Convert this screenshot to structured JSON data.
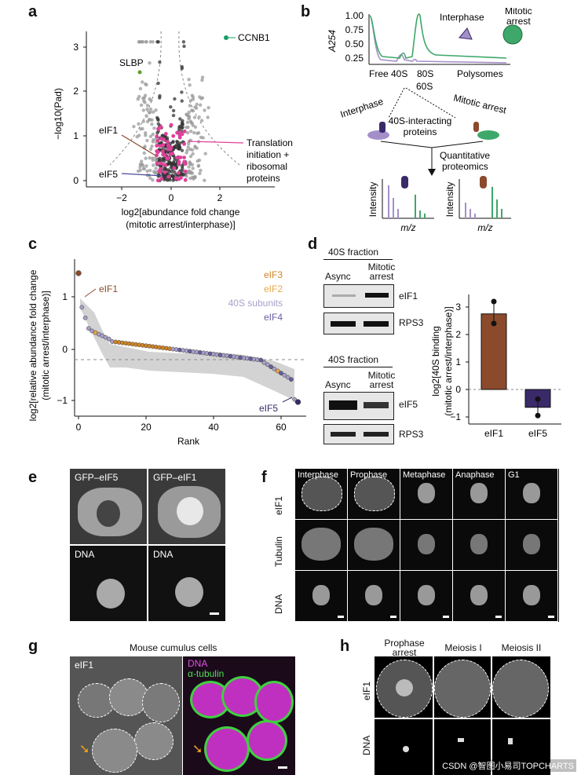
{
  "panel_letters": {
    "a": "a",
    "b": "b",
    "c": "c",
    "d": "d",
    "e": "e",
    "f": "f",
    "g": "g",
    "h": "h"
  },
  "panel_a": {
    "y_axis_label": "−log10(Pad)",
    "x_axis_label_line1": "log2[abundance fold change",
    "x_axis_label_line2": "(mitotic arrest/interphase)]",
    "y_ticks": [
      "0",
      "1",
      "2",
      "3"
    ],
    "x_ticks": [
      "−2",
      "0",
      "2"
    ],
    "callouts": {
      "ccnb1": "CCNB1",
      "slbp": "SLBP",
      "eif1": "eIF1",
      "eif5": "eIF5",
      "translation_l1": "Translation",
      "translation_l2": "initiation +",
      "translation_l3": "ribosomal",
      "translation_l4": "proteins"
    },
    "colors": {
      "ccnb1": "#1a9e6a",
      "slbp": "#5aa02c",
      "magenta": "#e0409a",
      "eif1": "#8b4a2b",
      "eif5": "#4a4a9a"
    }
  },
  "panel_b": {
    "y_axis_label": "A254",
    "y_ticks": [
      "1.00",
      "0.75",
      "0.50",
      "0.25"
    ],
    "x_labels": {
      "free": "Free 40S",
      "s80": "80S",
      "s60": "60S",
      "poly": "Polysomes"
    },
    "legend_interphase": "Interphase",
    "legend_mitotic_l1": "Mitotic",
    "legend_mitotic_l2": "arrest",
    "fraction_interphase": "Interphase",
    "fraction_mitotic": "Mitotic arrest",
    "proteins_l1": "40S-interacting",
    "proteins_l2": "proteins",
    "quant_l1": "Quantitative",
    "quant_l2": "proteomics",
    "intensity": "Intensity",
    "mz": "m/z",
    "colors": {
      "interphase": "#a58fc9",
      "mitotic": "#3ea86a",
      "dark": "#3a2a6a",
      "brown": "#8b4a2b"
    }
  },
  "panel_c": {
    "y_axis_label_l1": "log2[relative abundance fold change",
    "y_axis_label_l2": "(mitotic arrest/interphase)]",
    "x_axis_label": "Rank",
    "x_ticks": [
      "0",
      "20",
      "40",
      "60"
    ],
    "y_ticks": [
      "1",
      "0",
      "−1"
    ],
    "legend": [
      {
        "label": "eIF3",
        "color": "#d0862a"
      },
      {
        "label": "eIF2",
        "color": "#e8a84a"
      },
      {
        "label": "40S subunits",
        "color": "#a8a0c8"
      },
      {
        "label": "eIF4",
        "color": "#6a5ea0"
      }
    ],
    "callout_eif1": "eIF1",
    "callout_eif5": "eIF5"
  },
  "panel_d": {
    "fraction_title": "40S fraction",
    "col_async": "Async",
    "col_mitotic_l1": "Mitotic",
    "col_mitotic_l2": "arrest",
    "blot1": "eIF1",
    "blot2": "RPS3",
    "blot3": "eIF5",
    "blot4": "RPS3",
    "bar_ylabel_l1": "log2[40S binding",
    "bar_ylabel_l2": "(mitotic arrest/interphase)]",
    "bar_y_ticks": [
      "3",
      "2",
      "1",
      "0",
      "−1"
    ],
    "bars": [
      {
        "label": "eIF1",
        "value": 2.75,
        "point": 3.2,
        "point2": 2.4,
        "color": "#8b4a2b"
      },
      {
        "label": "eIF5",
        "value": -0.65,
        "point": -0.35,
        "point2": -0.95,
        "color": "#3a2a6a"
      }
    ]
  },
  "panel_e": {
    "labels": [
      "GFP–eIF5",
      "GFP–eIF1",
      "DNA",
      "DNA"
    ]
  },
  "panel_f": {
    "columns": [
      "Interphase",
      "Prophase",
      "Metaphase",
      "Anaphase",
      "G1"
    ],
    "rows": [
      "eIF1",
      "Tubulin",
      "DNA"
    ]
  },
  "panel_g": {
    "title": "Mouse cumulus cells",
    "left_label": "eIF1",
    "right_label_dna": "DNA",
    "right_label_tubulin": "α-tubulin"
  },
  "panel_h": {
    "columns_l1": [
      "Prophase",
      "Meiosis I",
      "Meiosis II"
    ],
    "columns_l2": [
      "arrest",
      "",
      ""
    ],
    "rows": [
      "eIF1",
      "DNA"
    ]
  },
  "watermark": "CSDN @智图小易司TOPCHARTS"
}
